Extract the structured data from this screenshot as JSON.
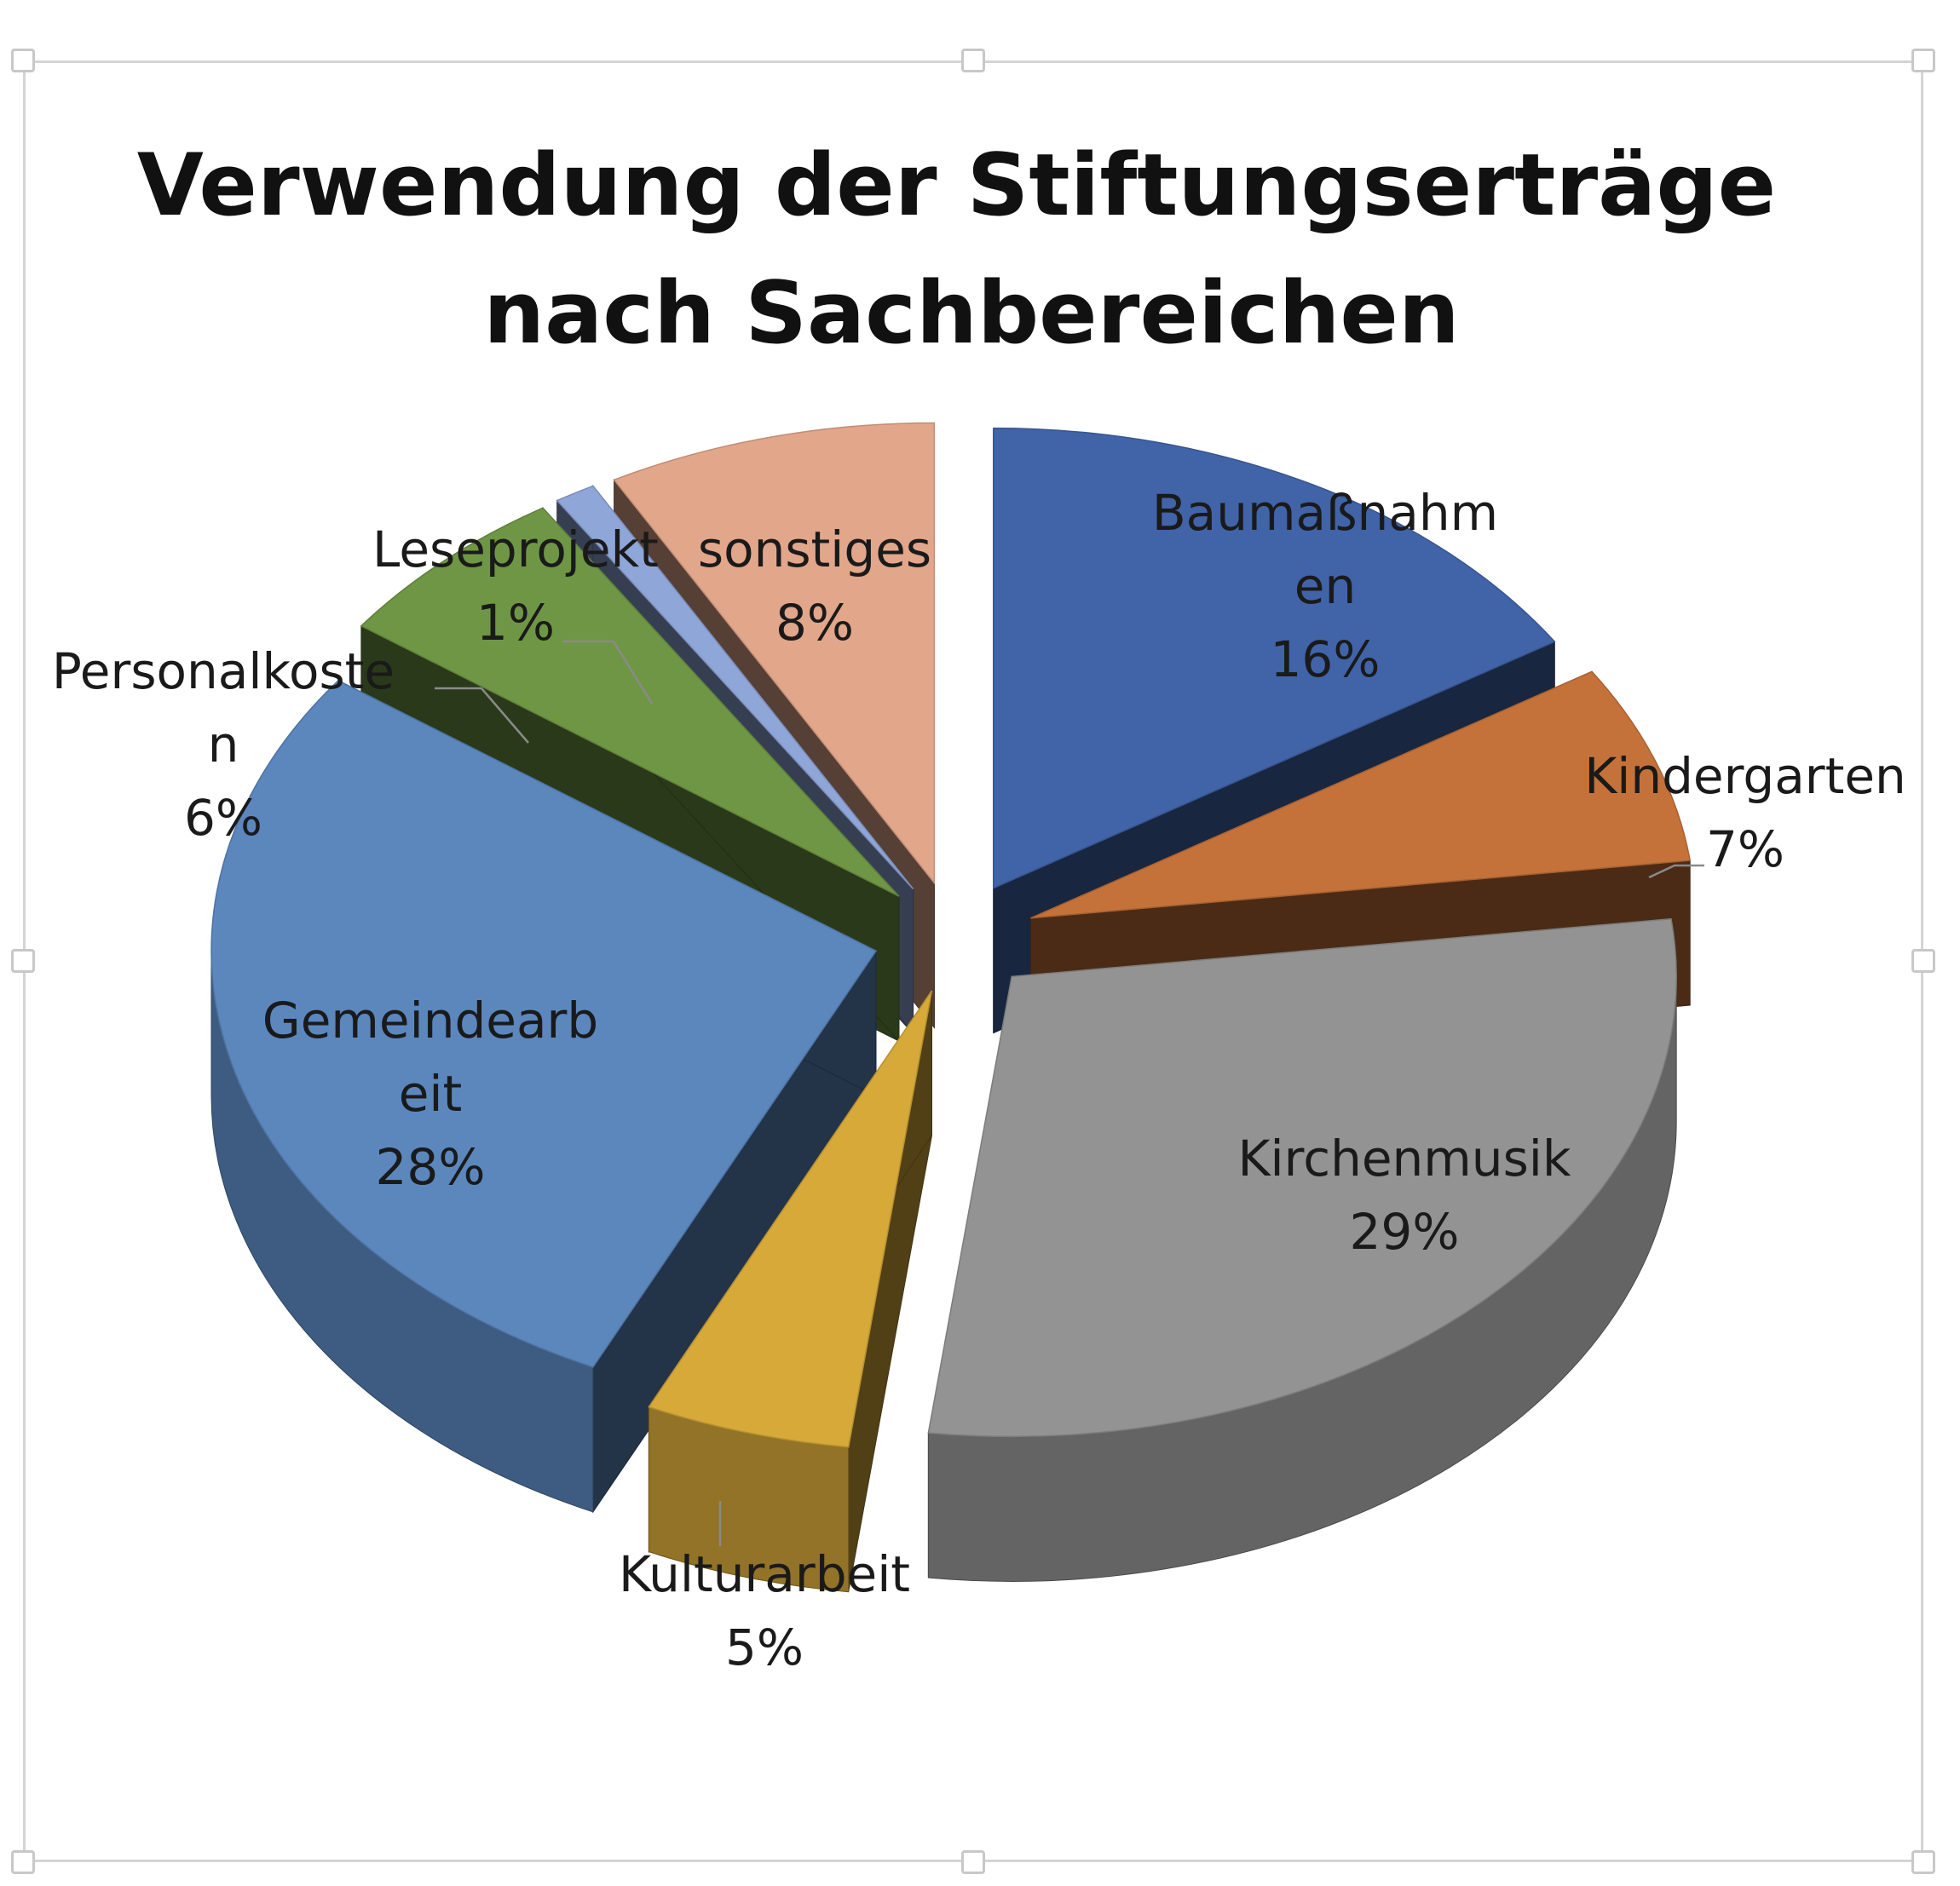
{
  "chart_data": {
    "type": "pie",
    "style": "3d-exploded",
    "title": "Verwendung der Stiftungserträge nach Sachbereichen",
    "title_lines": [
      "Verwendung der Stiftungserträge",
      "nach Sachbereichen"
    ],
    "categories": [
      "Baumaßnahmen",
      "Kindergarten",
      "Kirchenmusik",
      "Kulturarbeit",
      "Gemeindearbeit",
      "Personalkosten",
      "Leseprojekt",
      "sonstiges"
    ],
    "values": [
      16,
      7,
      29,
      5,
      28,
      6,
      1,
      8
    ],
    "unit": "%",
    "data_labels": [
      {
        "lines": [
          "Baumaßnahm",
          "en",
          "16%"
        ]
      },
      {
        "lines": [
          "Kindergarten",
          "7%"
        ]
      },
      {
        "lines": [
          "Kirchenmusik",
          "29%"
        ]
      },
      {
        "lines": [
          "Kulturarbeit",
          "5%"
        ]
      },
      {
        "lines": [
          "Gemeindearb",
          "eit",
          "28%"
        ]
      },
      {
        "lines": [
          "Personalkoste",
          "n",
          "6%"
        ]
      },
      {
        "lines": [
          "Leseprojekt",
          "1%"
        ]
      },
      {
        "lines": [
          "sonstiges",
          "8%"
        ]
      }
    ],
    "colors": [
      "#4164a8",
      "#c5723a",
      "#939393",
      "#d6a939",
      "#5b87bd",
      "#6f9645",
      "#8fa6d8",
      "#e2a68b"
    ],
    "legend": "none"
  }
}
